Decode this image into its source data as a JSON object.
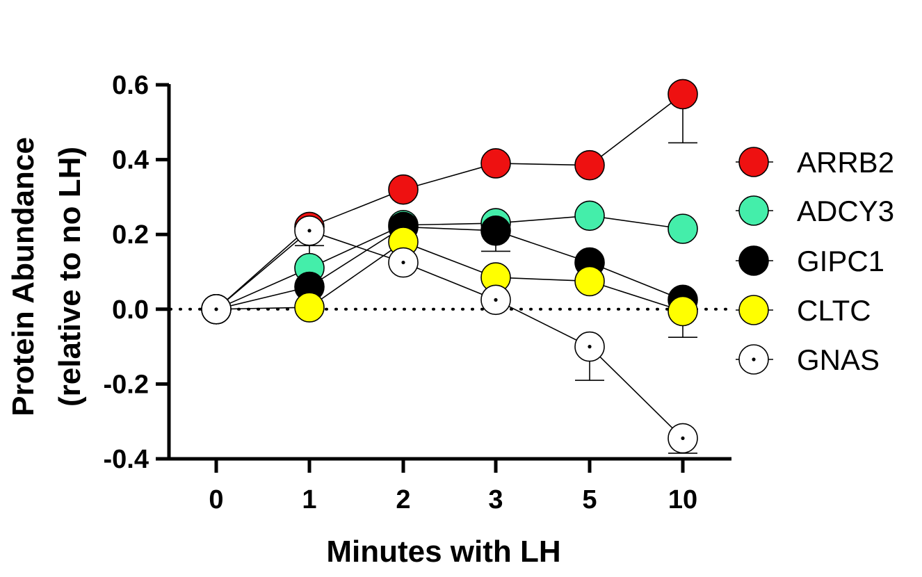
{
  "chart_data": {
    "type": "line",
    "xlabel": "Minutes with LH",
    "ylabel_line1": "Protein Abundance",
    "ylabel_line2": "(relative to no LH)",
    "categories": [
      "0",
      "1",
      "2",
      "3",
      "5",
      "10"
    ],
    "ylim": [
      -0.4,
      0.6
    ],
    "yticks": [
      -0.4,
      -0.2,
      0.0,
      0.2,
      0.4,
      0.6
    ],
    "ytick_labels": [
      "-0.4",
      "-0.2",
      "0.0",
      "0.2",
      "0.4",
      "0.6"
    ],
    "reference_line": {
      "y": 0.0,
      "style": "dotted"
    },
    "legend_position": "right",
    "series": [
      {
        "name": "ARRB2",
        "color": "#ee1111",
        "marker": "filled-circle",
        "values": [
          0.0,
          0.22,
          0.32,
          0.39,
          0.385,
          0.575
        ],
        "error": [
          0.0,
          0.0,
          0.0,
          0.0,
          0.0,
          0.13
        ]
      },
      {
        "name": "ADCY3",
        "color": "#44eeaa",
        "marker": "filled-circle",
        "values": [
          0.0,
          0.11,
          0.225,
          0.23,
          0.25,
          0.215
        ],
        "error": [
          0.0,
          0.06,
          0.0,
          0.0,
          0.0,
          0.0
        ]
      },
      {
        "name": "GIPC1",
        "color": "#000000",
        "marker": "filled-circle",
        "values": [
          0.0,
          0.06,
          0.22,
          0.21,
          0.125,
          0.025
        ],
        "error": [
          0.0,
          0.0,
          0.0,
          0.055,
          0.0,
          0.0
        ]
      },
      {
        "name": "CLTC",
        "color": "#ffff00",
        "marker": "filled-circle",
        "values": [
          0.0,
          0.005,
          0.18,
          0.085,
          0.075,
          -0.005
        ],
        "error": [
          0.0,
          0.0,
          0.0,
          0.0,
          0.0,
          0.07
        ]
      },
      {
        "name": "GNAS",
        "color": "#ffffff",
        "marker": "open-circle-dot",
        "values": [
          0.0,
          0.21,
          0.125,
          0.025,
          -0.1,
          -0.345
        ],
        "error": [
          0.0,
          0.0,
          0.0,
          0.0,
          0.09,
          0.04
        ]
      }
    ]
  }
}
